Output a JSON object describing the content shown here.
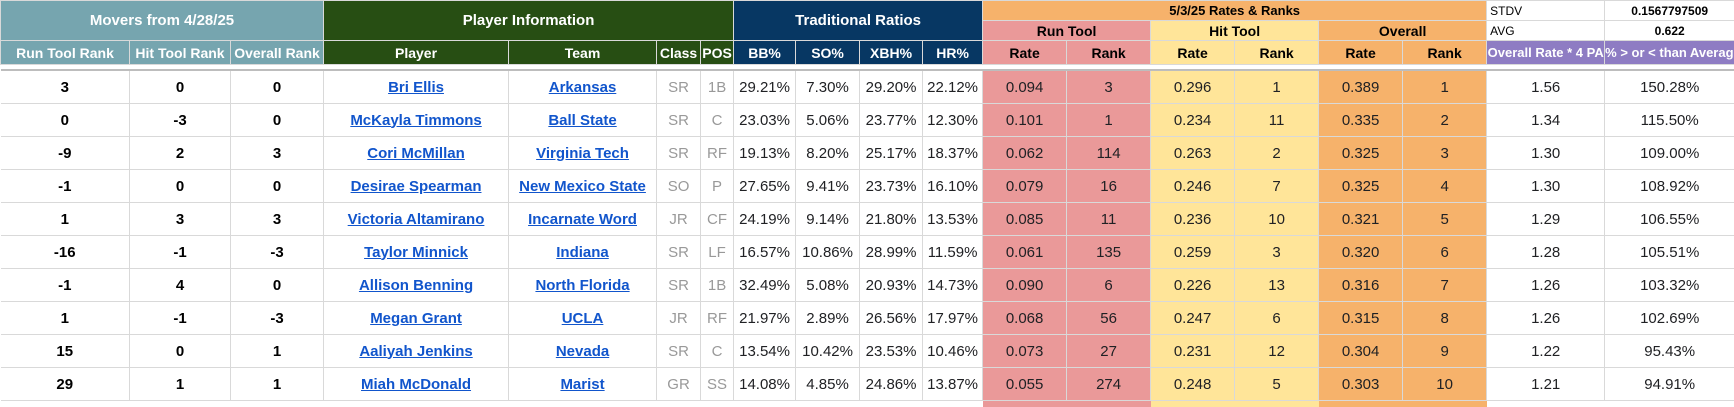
{
  "headers": {
    "movers": "Movers from 4/28/25",
    "player_info": "Player Information",
    "traditional": "Traditional Ratios",
    "rates_ranks": "5/3/25 Rates & Ranks",
    "run_tool": "Run Tool",
    "hit_tool": "Hit Tool",
    "overall": "Overall",
    "stdv_label": "STDV",
    "stdv_value": "0.1567797509",
    "avg_label": "AVG",
    "avg_value": "0.622",
    "cols": {
      "run_tool_rank": "Run Tool Rank",
      "hit_tool_rank": "Hit Tool Rank",
      "overall_rank": "Overall Rank",
      "player": "Player",
      "team": "Team",
      "class": "Class",
      "pos": "POS",
      "bb": "BB%",
      "so": "SO%",
      "xbh": "XBH%",
      "hr": "HR%",
      "rate": "Rate",
      "rank": "Rank",
      "overall_rate_pa": "Overall Rate * 4 PA",
      "vs_avg": "% > or < than Average"
    }
  },
  "rows": [
    {
      "mv_run": "3",
      "mv_hit": "0",
      "mv_ov": "0",
      "player": "Bri Ellis",
      "team": "Arkansas",
      "cls": "SR",
      "pos": "1B",
      "bb": "29.21%",
      "so": "7.30%",
      "xbh": "29.20%",
      "hr": "22.12%",
      "run_rate": "0.094",
      "run_rank": "3",
      "hit_rate": "0.296",
      "hit_rank": "1",
      "ov_rate": "0.389",
      "ov_rank": "1",
      "pa": "1.56",
      "pct": "150.28%"
    },
    {
      "mv_run": "0",
      "mv_hit": "-3",
      "mv_ov": "0",
      "player": "McKayla Timmons",
      "team": "Ball State",
      "cls": "SR",
      "pos": "C",
      "bb": "23.03%",
      "so": "5.06%",
      "xbh": "23.77%",
      "hr": "12.30%",
      "run_rate": "0.101",
      "run_rank": "1",
      "hit_rate": "0.234",
      "hit_rank": "11",
      "ov_rate": "0.335",
      "ov_rank": "2",
      "pa": "1.34",
      "pct": "115.50%"
    },
    {
      "mv_run": "-9",
      "mv_hit": "2",
      "mv_ov": "3",
      "player": "Cori McMillan",
      "team": "Virginia Tech",
      "cls": "SR",
      "pos": "RF",
      "bb": "19.13%",
      "so": "8.20%",
      "xbh": "25.17%",
      "hr": "18.37%",
      "run_rate": "0.062",
      "run_rank": "114",
      "hit_rate": "0.263",
      "hit_rank": "2",
      "ov_rate": "0.325",
      "ov_rank": "3",
      "pa": "1.30",
      "pct": "109.00%"
    },
    {
      "mv_run": "-1",
      "mv_hit": "0",
      "mv_ov": "0",
      "player": "Desirae Spearman",
      "team": "New Mexico State",
      "cls": "SO",
      "pos": "P",
      "bb": "27.65%",
      "so": "9.41%",
      "xbh": "23.73%",
      "hr": "16.10%",
      "run_rate": "0.079",
      "run_rank": "16",
      "hit_rate": "0.246",
      "hit_rank": "7",
      "ov_rate": "0.325",
      "ov_rank": "4",
      "pa": "1.30",
      "pct": "108.92%"
    },
    {
      "mv_run": "1",
      "mv_hit": "3",
      "mv_ov": "3",
      "player": "Victoria Altamirano",
      "team": "Incarnate Word",
      "cls": "JR",
      "pos": "CF",
      "bb": "24.19%",
      "so": "9.14%",
      "xbh": "21.80%",
      "hr": "13.53%",
      "run_rate": "0.085",
      "run_rank": "11",
      "hit_rate": "0.236",
      "hit_rank": "10",
      "ov_rate": "0.321",
      "ov_rank": "5",
      "pa": "1.29",
      "pct": "106.55%"
    },
    {
      "mv_run": "-16",
      "mv_hit": "-1",
      "mv_ov": "-3",
      "player": "Taylor Minnick",
      "team": "Indiana",
      "cls": "SR",
      "pos": "LF",
      "bb": "16.57%",
      "so": "10.86%",
      "xbh": "28.99%",
      "hr": "11.59%",
      "run_rate": "0.061",
      "run_rank": "135",
      "hit_rate": "0.259",
      "hit_rank": "3",
      "ov_rate": "0.320",
      "ov_rank": "6",
      "pa": "1.28",
      "pct": "105.51%"
    },
    {
      "mv_run": "-1",
      "mv_hit": "4",
      "mv_ov": "0",
      "player": "Allison Benning",
      "team": "North Florida",
      "cls": "SR",
      "pos": "1B",
      "bb": "32.49%",
      "so": "5.08%",
      "xbh": "20.93%",
      "hr": "14.73%",
      "run_rate": "0.090",
      "run_rank": "6",
      "hit_rate": "0.226",
      "hit_rank": "13",
      "ov_rate": "0.316",
      "ov_rank": "7",
      "pa": "1.26",
      "pct": "103.32%"
    },
    {
      "mv_run": "1",
      "mv_hit": "-1",
      "mv_ov": "-3",
      "player": "Megan Grant",
      "team": "UCLA",
      "cls": "JR",
      "pos": "RF",
      "bb": "21.97%",
      "so": "2.89%",
      "xbh": "26.56%",
      "hr": "17.97%",
      "run_rate": "0.068",
      "run_rank": "56",
      "hit_rate": "0.247",
      "hit_rank": "6",
      "ov_rate": "0.315",
      "ov_rank": "8",
      "pa": "1.26",
      "pct": "102.69%"
    },
    {
      "mv_run": "15",
      "mv_hit": "0",
      "mv_ov": "1",
      "player": "Aaliyah Jenkins",
      "team": "Nevada",
      "cls": "SR",
      "pos": "C",
      "bb": "13.54%",
      "so": "10.42%",
      "xbh": "23.53%",
      "hr": "10.46%",
      "run_rate": "0.073",
      "run_rank": "27",
      "hit_rate": "0.231",
      "hit_rank": "12",
      "ov_rate": "0.304",
      "ov_rank": "9",
      "pa": "1.22",
      "pct": "95.43%"
    },
    {
      "mv_run": "29",
      "mv_hit": "1",
      "mv_ov": "1",
      "player": "Miah McDonald",
      "team": "Marist",
      "cls": "GR",
      "pos": "SS",
      "bb": "14.08%",
      "so": "4.85%",
      "xbh": "24.86%",
      "hr": "13.87%",
      "run_rate": "0.055",
      "run_rank": "274",
      "hit_rate": "0.248",
      "hit_rank": "5",
      "ov_rate": "0.303",
      "ov_rank": "10",
      "pa": "1.21",
      "pct": "94.91%"
    }
  ]
}
